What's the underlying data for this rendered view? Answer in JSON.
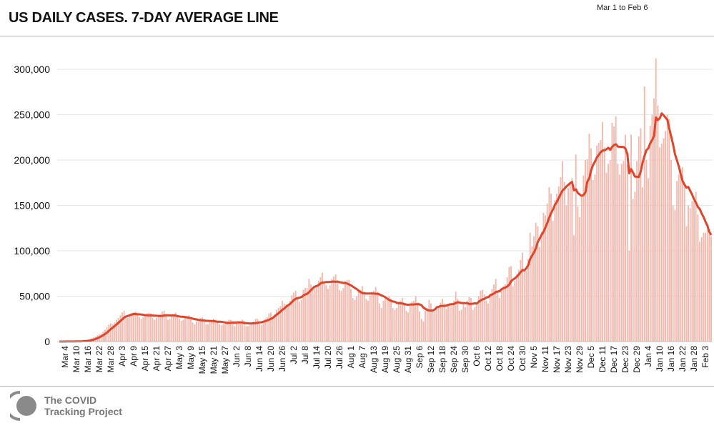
{
  "header": {
    "title": "US DAILY CASES. 7-DAY AVERAGE LINE",
    "date_range": "Mar 1 to Feb 6"
  },
  "footer": {
    "logo_text_line1": "The COVID",
    "logo_text_line2": "Tracking Project"
  },
  "colors": {
    "bars": "#f6b9ae",
    "average_line": "#e0452b",
    "grid": "#e6e6e6"
  },
  "chart_data": {
    "type": "bar",
    "title": "US DAILY CASES. 7-DAY AVERAGE LINE",
    "subtitle": "Mar 1 to Feb 6",
    "ylim": [
      0,
      320000
    ],
    "y_ticks": [
      0,
      50000,
      100000,
      150000,
      200000,
      250000,
      300000
    ],
    "y_tick_labels": [
      "0",
      "50,000",
      "100,000",
      "150,000",
      "200,000",
      "250,000",
      "300,000"
    ],
    "grid": true,
    "overlay": "7-day average line",
    "x_tick_labels": [
      "Mar 4",
      "Mar 10",
      "Mar 16",
      "Mar 22",
      "Mar 28",
      "Apr 3",
      "Apr 9",
      "Apr 15",
      "Apr 21",
      "Apr 27",
      "May 3",
      "May 9",
      "May 15",
      "May 21",
      "May 27",
      "Jun 2",
      "Jun 8",
      "Jun 14",
      "Jun 20",
      "Jun 26",
      "Jul 2",
      "Jul 8",
      "Jul 14",
      "Jul 20",
      "Jul 26",
      "Aug 1",
      "Aug 7",
      "Aug 13",
      "Aug 19",
      "Aug 25",
      "Aug 31",
      "Sep 6",
      "Sep 12",
      "Sep 18",
      "Sep 24",
      "Sep 30",
      "Oct 6",
      "Oct 12",
      "Oct 18",
      "Oct 24",
      "Oct 30",
      "Nov 5",
      "Nov 11",
      "Nov 17",
      "Nov 23",
      "Nov 29",
      "Dec 5",
      "Dec 11",
      "Dec 17",
      "Dec 23",
      "Dec 29",
      "Jan 4",
      "Jan 10",
      "Jan 16",
      "Jan 22",
      "Jan 28",
      "Feb 3"
    ],
    "daily_values": [
      20,
      30,
      40,
      60,
      80,
      100,
      120,
      150,
      200,
      300,
      400,
      500,
      700,
      900,
      1200,
      1500,
      2500,
      3500,
      4500,
      5500,
      7000,
      8000,
      9000,
      11000,
      13000,
      16000,
      19000,
      20000,
      19000,
      21000,
      24000,
      26000,
      29000,
      32000,
      34000,
      27000,
      26000,
      30000,
      31000,
      32000,
      33000,
      31000,
      27000,
      25000,
      27000,
      29000,
      31000,
      32000,
      31000,
      26000,
      24000,
      26000,
      28000,
      30000,
      33000,
      34000,
      28000,
      24000,
      25000,
      28000,
      30000,
      32000,
      29000,
      25000,
      23000,
      24000,
      26000,
      28000,
      29000,
      26000,
      21000,
      19000,
      22000,
      22000,
      26000,
      27000,
      25000,
      19000,
      19000,
      21000,
      22000,
      25000,
      24000,
      23000,
      19000,
      18000,
      19000,
      19000,
      22000,
      24000,
      24000,
      21000,
      17000,
      20000,
      20000,
      21000,
      24000,
      22000,
      17000,
      17000,
      18000,
      21000,
      22000,
      25000,
      25000,
      19000,
      18000,
      23000,
      25000,
      27000,
      31000,
      32000,
      27000,
      30000,
      35000,
      37000,
      39000,
      45000,
      42000,
      41000,
      41000,
      45000,
      51000,
      54000,
      56000,
      47000,
      44000,
      46000,
      57000,
      59000,
      59000,
      69000,
      63000,
      59000,
      58000,
      61000,
      67000,
      71000,
      76000,
      64000,
      62000,
      58000,
      62000,
      69000,
      72000,
      74000,
      66000,
      57000,
      56000,
      59000,
      67000,
      68000,
      68000,
      58000,
      48000,
      46000,
      50000,
      55000,
      57000,
      61000,
      55000,
      47000,
      45000,
      51000,
      55000,
      56000,
      60000,
      55000,
      42000,
      37000,
      45000,
      47000,
      46000,
      50000,
      47000,
      37000,
      35000,
      37000,
      44000,
      45000,
      48000,
      43000,
      34000,
      32000,
      40000,
      44000,
      45000,
      50000,
      43000,
      33000,
      25000,
      22000,
      34000,
      37000,
      46000,
      42000,
      34000,
      33000,
      38000,
      38000,
      43000,
      47000,
      42000,
      36000,
      39000,
      42000,
      39000,
      45000,
      55000,
      47000,
      34000,
      35000,
      42000,
      38000,
      45000,
      49000,
      48000,
      35000,
      38000,
      41000,
      50000,
      56000,
      57000,
      52000,
      45000,
      42000,
      53000,
      58000,
      63000,
      69000,
      56000,
      48000,
      57000,
      61000,
      63000,
      71000,
      82000,
      83000,
      61000,
      67000,
      74000,
      79000,
      90000,
      98000,
      80000,
      78000,
      91000,
      120000,
      105000,
      116000,
      131000,
      127000,
      104000,
      121000,
      142000,
      139000,
      152000,
      170000,
      163000,
      133000,
      156000,
      163000,
      171000,
      181000,
      199000,
      176000,
      150000,
      169000,
      176000,
      180000,
      117000,
      206000,
      149000,
      137000,
      159000,
      183000,
      200000,
      201000,
      229000,
      213000,
      178000,
      184000,
      216000,
      219000,
      222000,
      242000,
      214000,
      186000,
      196000,
      200000,
      241000,
      237000,
      248000,
      196000,
      184000,
      196000,
      199000,
      228000,
      195000,
      100000,
      228000,
      157000,
      165000,
      199000,
      226000,
      235000,
      170000,
      281000,
      200000,
      180000,
      238000,
      250000,
      268000,
      312000,
      260000,
      214000,
      218000,
      224000,
      232000,
      250000,
      245000,
      200000,
      150000,
      145000,
      177000,
      184000,
      190000,
      192000,
      172000,
      127000,
      150000,
      147000,
      155000,
      155000,
      165000,
      140000,
      110000,
      115000,
      120000,
      120000,
      123000,
      118000,
      116000
    ]
  }
}
